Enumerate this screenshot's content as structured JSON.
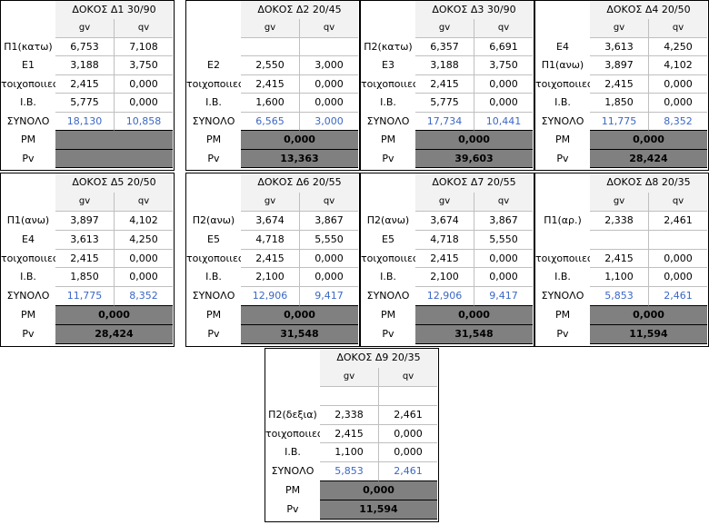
{
  "beams": [
    {
      "title": "ΔΟΚΟΣ Δ1 30/90",
      "col_gv": "gv",
      "col_qv": "qv",
      "rows": [
        {
          "label": "Π1(κατω)",
          "gv": "6,753",
          "qv": "7,108"
        },
        {
          "label": "E1",
          "gv": "3,188",
          "qv": "3,750"
        },
        {
          "label": "τοιχοποιιες",
          "gv": "2,415",
          "qv": "0,000"
        },
        {
          "label": "Ι.Β.",
          "gv": "5,775",
          "qv": "0,000"
        }
      ],
      "sum_label": "ΣΥΝΟΛΟ",
      "sum_gv": "18,130",
      "sum_qv": "10,858",
      "pm_label": "PM",
      "pm_value": "",
      "pv_label": "Pv",
      "pv_value": ""
    },
    {
      "title": "ΔΟΚΟΣ Δ2 20/45",
      "col_gv": "gv",
      "col_qv": "qv",
      "rows": [
        {
          "label": "",
          "gv": "",
          "qv": ""
        },
        {
          "label": "E2",
          "gv": "2,550",
          "qv": "3,000"
        },
        {
          "label": "τοιχοποιιες",
          "gv": "2,415",
          "qv": "0,000"
        },
        {
          "label": "Ι.Β.",
          "gv": "1,600",
          "qv": "0,000"
        }
      ],
      "sum_label": "ΣΥΝΟΛΟ",
      "sum_gv": "6,565",
      "sum_qv": "3,000",
      "pm_label": "PM",
      "pm_value": "0,000",
      "pv_label": "Pv",
      "pv_value": "13,363"
    },
    {
      "title": "ΔΟΚΟΣ Δ3 30/90",
      "col_gv": "gv",
      "col_qv": "qv",
      "rows": [
        {
          "label": "Π2(κατω)",
          "gv": "6,357",
          "qv": "6,691"
        },
        {
          "label": "E3",
          "gv": "3,188",
          "qv": "3,750"
        },
        {
          "label": "τοιχοποιιες",
          "gv": "2,415",
          "qv": "0,000"
        },
        {
          "label": "Ι.Β.",
          "gv": "5,775",
          "qv": "0,000"
        }
      ],
      "sum_label": "ΣΥΝΟΛΟ",
      "sum_gv": "17,734",
      "sum_qv": "10,441",
      "pm_label": "PM",
      "pm_value": "0,000",
      "pv_label": "Pv",
      "pv_value": "39,603"
    },
    {
      "title": "ΔΟΚΟΣ Δ4 20/50",
      "col_gv": "gv",
      "col_qv": "qv",
      "rows": [
        {
          "label": "E4",
          "gv": "3,613",
          "qv": "4,250"
        },
        {
          "label": "Π1(ανω)",
          "gv": "3,897",
          "qv": "4,102"
        },
        {
          "label": "τοιχοποιιες",
          "gv": "2,415",
          "qv": "0,000"
        },
        {
          "label": "Ι.Β.",
          "gv": "1,850",
          "qv": "0,000"
        }
      ],
      "sum_label": "ΣΥΝΟΛΟ",
      "sum_gv": "11,775",
      "sum_qv": "8,352",
      "pm_label": "PM",
      "pm_value": "0,000",
      "pv_label": "Pv",
      "pv_value": "28,424"
    },
    {
      "title": "ΔΟΚΟΣ Δ5 20/50",
      "col_gv": "gv",
      "col_qv": "qv",
      "rows": [
        {
          "label": "Π1(ανω)",
          "gv": "3,897",
          "qv": "4,102"
        },
        {
          "label": "E4",
          "gv": "3,613",
          "qv": "4,250"
        },
        {
          "label": "τοιχοποιιες",
          "gv": "2,415",
          "qv": "0,000"
        },
        {
          "label": "Ι.Β.",
          "gv": "1,850",
          "qv": "0,000"
        }
      ],
      "sum_label": "ΣΥΝΟΛΟ",
      "sum_gv": "11,775",
      "sum_qv": "8,352",
      "pm_label": "PM",
      "pm_value": "0,000",
      "pv_label": "Pv",
      "pv_value": "28,424"
    },
    {
      "title": "ΔΟΚΟΣ Δ6 20/55",
      "col_gv": "gv",
      "col_qv": "qv",
      "rows": [
        {
          "label": "Π2(ανω)",
          "gv": "3,674",
          "qv": "3,867"
        },
        {
          "label": "E5",
          "gv": "4,718",
          "qv": "5,550"
        },
        {
          "label": "τοιχοποιιες",
          "gv": "2,415",
          "qv": "0,000"
        },
        {
          "label": "Ι.Β.",
          "gv": "2,100",
          "qv": "0,000"
        }
      ],
      "sum_label": "ΣΥΝΟΛΟ",
      "sum_gv": "12,906",
      "sum_qv": "9,417",
      "pm_label": "PM",
      "pm_value": "0,000",
      "pv_label": "Pv",
      "pv_value": "31,548"
    },
    {
      "title": "ΔΟΚΟΣ Δ7 20/55",
      "col_gv": "gv",
      "col_qv": "qv",
      "rows": [
        {
          "label": "Π2(ανω)",
          "gv": "3,674",
          "qv": "3,867"
        },
        {
          "label": "E5",
          "gv": "4,718",
          "qv": "5,550"
        },
        {
          "label": "τοιχοποιιες",
          "gv": "2,415",
          "qv": "0,000"
        },
        {
          "label": "Ι.Β.",
          "gv": "2,100",
          "qv": "0,000"
        }
      ],
      "sum_label": "ΣΥΝΟΛΟ",
      "sum_gv": "12,906",
      "sum_qv": "9,417",
      "pm_label": "PM",
      "pm_value": "0,000",
      "pv_label": "Pv",
      "pv_value": "31,548"
    },
    {
      "title": "ΔΟΚΟΣ Δ8 20/35",
      "col_gv": "gv",
      "col_qv": "qv",
      "rows": [
        {
          "label": "Π1(αρ.)",
          "gv": "2,338",
          "qv": "2,461"
        },
        {
          "label": "",
          "gv": "",
          "qv": ""
        },
        {
          "label": "τοιχοποιιες",
          "gv": "2,415",
          "qv": "0,000"
        },
        {
          "label": "Ι.Β.",
          "gv": "1,100",
          "qv": "0,000"
        }
      ],
      "sum_label": "ΣΥΝΟΛΟ",
      "sum_gv": "5,853",
      "sum_qv": "2,461",
      "pm_label": "PM",
      "pm_value": "0,000",
      "pv_label": "Pv",
      "pv_value": "11,594"
    },
    {
      "title": "ΔΟΚΟΣ Δ9 20/35",
      "col_gv": "gv",
      "col_qv": "qv",
      "rows": [
        {
          "label": "",
          "gv": "",
          "qv": ""
        },
        {
          "label": "Π2(δεξια)",
          "gv": "2,338",
          "qv": "2,461"
        },
        {
          "label": "τοιχοποιιες",
          "gv": "2,415",
          "qv": "0,000"
        },
        {
          "label": "Ι.Β.",
          "gv": "1,100",
          "qv": "0,000"
        }
      ],
      "sum_label": "ΣΥΝΟΛΟ",
      "sum_gv": "5,853",
      "sum_qv": "2,461",
      "pm_label": "PM",
      "pm_value": "0,000",
      "pv_label": "Pv",
      "pv_value": "11,594"
    }
  ],
  "colors": {
    "blue_values": "#3b67c6",
    "dark_band": "#808080",
    "header_bg": "#f2f2f2"
  }
}
